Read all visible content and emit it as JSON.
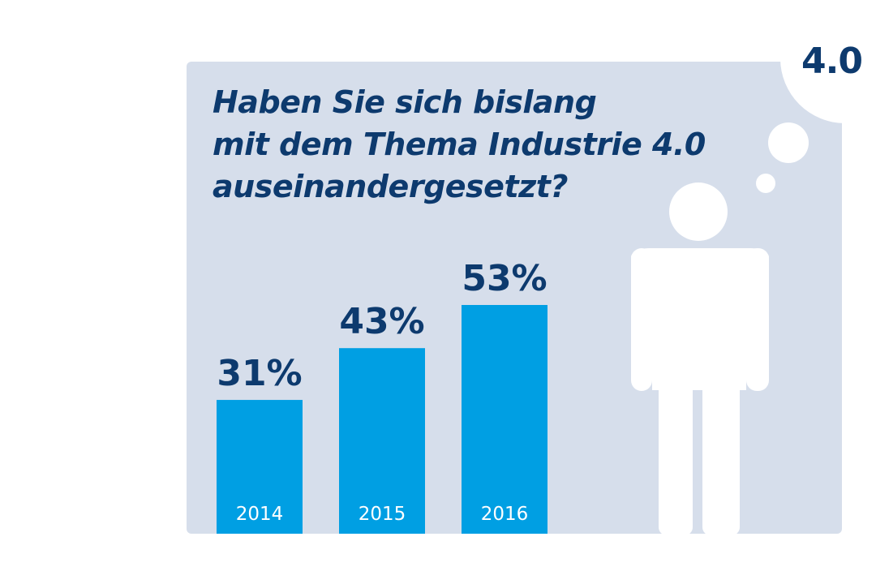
{
  "badge": {
    "text": "4.0"
  },
  "chart_data": {
    "type": "bar",
    "title_lines": [
      "Haben Sie sich bislang",
      "mit dem Thema Industrie 4.0",
      "auseinandergesetzt?"
    ],
    "categories": [
      "2014",
      "2015",
      "2016"
    ],
    "values": [
      31,
      43,
      53
    ],
    "value_labels": [
      "31%",
      "43%",
      "53%"
    ],
    "unit": "%",
    "bar_color": "#009fe3",
    "label_color": "#0d3a6e",
    "background_color": "#d6deeb"
  },
  "colors": {
    "accent": "#009fe3",
    "text": "#0d3a6e",
    "panel": "#d6deeb",
    "figure": "#ffffff"
  },
  "icons": [
    "person-icon",
    "thought-bubble-icon"
  ]
}
